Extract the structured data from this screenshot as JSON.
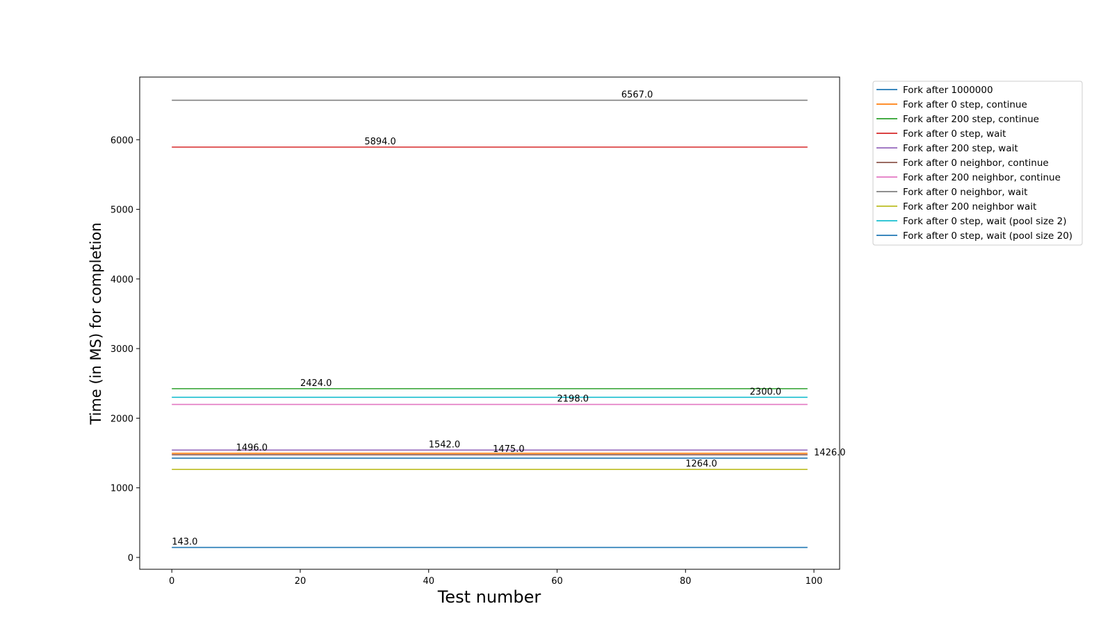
{
  "chart_data": {
    "type": "line",
    "xlabel": "Test number",
    "ylabel": "Time (in MS) for completion",
    "xlim": [
      -5,
      104
    ],
    "ylim": [
      -170,
      6900
    ],
    "xticks": [
      0,
      20,
      40,
      60,
      80,
      100
    ],
    "yticks": [
      0,
      1000,
      2000,
      3000,
      4000,
      5000,
      6000
    ],
    "x_range": [
      0,
      99
    ],
    "legend_position": "outside-top-right",
    "grid": false,
    "series": [
      {
        "name": "Fork after 1000000",
        "value": 143.0,
        "color": "#1f77b4",
        "label": "143.0",
        "label_x": 0
      },
      {
        "name": "Fork after 0 step, continue",
        "value": 1496.0,
        "color": "#ff7f0e",
        "label": "1496.0",
        "label_x": 10
      },
      {
        "name": "Fork after 200 step, continue",
        "value": 2424.0,
        "color": "#2ca02c",
        "label": "2424.0",
        "label_x": 20
      },
      {
        "name": "Fork after 0 step, wait",
        "value": 5894.0,
        "color": "#d62728",
        "label": "5894.0",
        "label_x": 30
      },
      {
        "name": "Fork after 200 step, wait",
        "value": 1542.0,
        "color": "#9467bd",
        "label": "1542.0",
        "label_x": 40
      },
      {
        "name": "Fork after 0 neighbor, continue",
        "value": 1475.0,
        "color": "#8c564b",
        "label": "1475.0",
        "label_x": 50
      },
      {
        "name": "Fork after 200 neighbor, continue",
        "value": 2198.0,
        "color": "#e377c2",
        "label": "2198.0",
        "label_x": 60
      },
      {
        "name": "Fork after 0 neighbor, wait",
        "value": 6567.0,
        "color": "#7f7f7f",
        "label": "6567.0",
        "label_x": 70
      },
      {
        "name": "Fork after 200 neighbor wait",
        "value": 1264.0,
        "color": "#bcbd22",
        "label": "1264.0",
        "label_x": 80
      },
      {
        "name": "Fork after 0 step, wait (pool size 2)",
        "value": 2300.0,
        "color": "#17becf",
        "label": "2300.0",
        "label_x": 90
      },
      {
        "name": "Fork after 0 step, wait (pool size 20)",
        "value": 1426.0,
        "color": "#1f77b4",
        "label": "1426.0",
        "label_x": 100
      }
    ]
  }
}
